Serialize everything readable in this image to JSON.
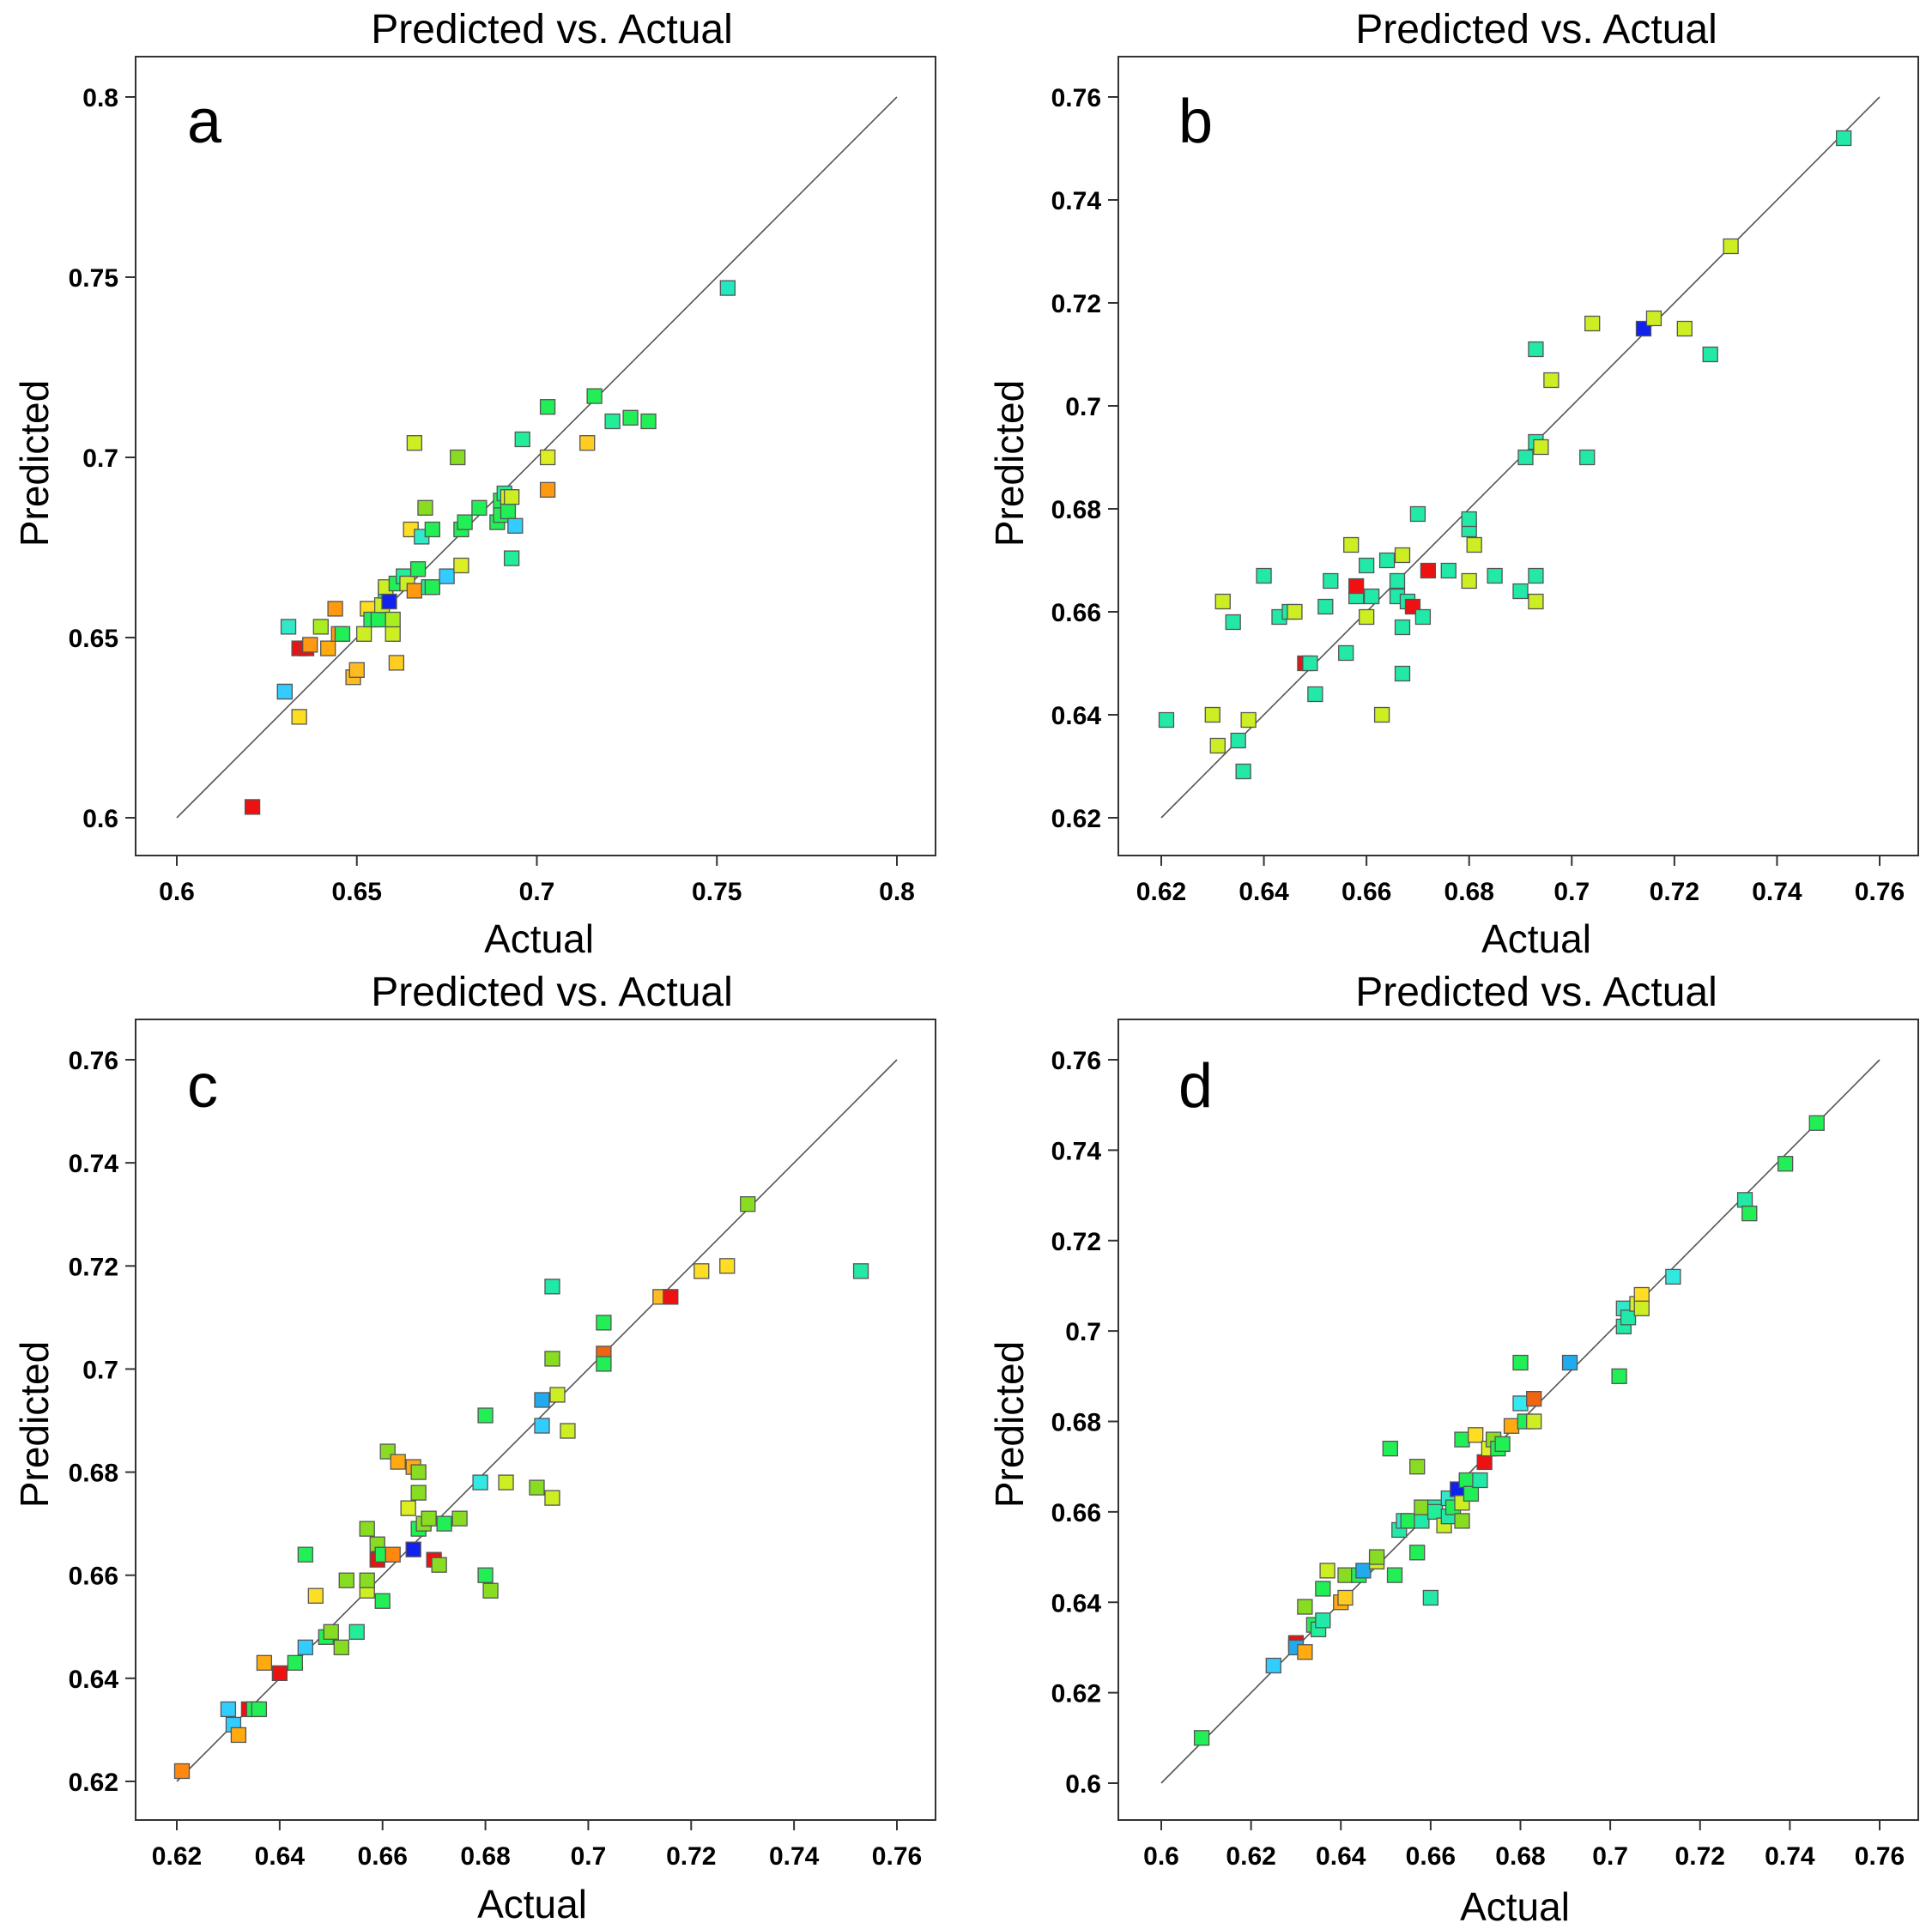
{
  "figure": {
    "title_common": "Predicted vs. Actual"
  },
  "chart_data": [
    {
      "type": "scatter",
      "panel": "a",
      "title": "Predicted vs. Actual",
      "xlabel": "Actual",
      "ylabel": "Predicted",
      "xlim": [
        0.6,
        0.8
      ],
      "ylim": [
        0.6,
        0.8
      ],
      "xticks": [
        "0.6",
        "0.65",
        "0.7",
        "0.75",
        "0.8"
      ],
      "yticks": [
        "0.6",
        "0.65",
        "0.7",
        "0.75",
        "0.8"
      ],
      "x": [
        0.621,
        0.63,
        0.631,
        0.63,
        0.634,
        0.634,
        0.636,
        0.637,
        0.64,
        0.642,
        0.644,
        0.645,
        0.646,
        0.649,
        0.65,
        0.652,
        0.653,
        0.654,
        0.656,
        0.657,
        0.658,
        0.658,
        0.659,
        0.66,
        0.66,
        0.661,
        0.661,
        0.663,
        0.664,
        0.665,
        0.666,
        0.666,
        0.667,
        0.668,
        0.669,
        0.67,
        0.671,
        0.671,
        0.675,
        0.678,
        0.679,
        0.679,
        0.68,
        0.684,
        0.689,
        0.69,
        0.69,
        0.691,
        0.692,
        0.692,
        0.693,
        0.693,
        0.694,
        0.696,
        0.703,
        0.703,
        0.703,
        0.714,
        0.716,
        0.721,
        0.726,
        0.731,
        0.753
      ],
      "y": [
        0.603,
        0.635,
        0.653,
        0.635,
        0.647,
        0.628,
        0.647,
        0.648,
        0.653,
        0.647,
        0.658,
        0.651,
        0.651,
        0.639,
        0.641,
        0.651,
        0.658,
        0.655,
        0.655,
        0.659,
        0.663,
        0.664,
        0.66,
        0.651,
        0.655,
        0.643,
        0.665,
        0.667,
        0.665,
        0.68,
        0.704,
        0.663,
        0.669,
        0.678,
        0.686,
        0.664,
        0.68,
        0.664,
        0.667,
        0.7,
        0.68,
        0.67,
        0.682,
        0.686,
        0.682,
        0.684,
        0.688,
        0.69,
        0.689,
        0.685,
        0.672,
        0.689,
        0.681,
        0.705,
        0.714,
        0.7,
        0.691,
        0.704,
        0.717,
        0.71,
        0.711,
        0.71,
        0.747
      ],
      "colors": [
        "#ee1111",
        "#88dd22",
        "#33e8c8",
        "#33ccff",
        "#ee1111",
        "#ffdd22",
        "#ee1111",
        "#ff9911",
        "#aaee22",
        "#ffaa11",
        "#ff9911",
        "#ff9911",
        "#22ee55",
        "#ffbb22",
        "#ffbb22",
        "#ccee22",
        "#ffdd22",
        "#22ee55",
        "#22ee55",
        "#ccee22",
        "#22ee99",
        "#ccee22",
        "#1122ee",
        "#ccee22",
        "#aaee22",
        "#ffcc22",
        "#22ee55",
        "#22ee99",
        "#ccee22",
        "#ffdd22",
        "#ccee22",
        "#ff9911",
        "#22ee55",
        "#33e8c8",
        "#88dd22",
        "#22ee99",
        "#22ee55",
        "#22ee55",
        "#33ccff",
        "#88dd22",
        "#22ee55",
        "#ddee22",
        "#22ee55",
        "#22ee55",
        "#22ee55",
        "#22ee55",
        "#22ee55",
        "#22ee99",
        "#ddee22",
        "#22ee55",
        "#22ee99",
        "#ccee22",
        "#33ccff",
        "#22ee99",
        "#22ee55",
        "#ddee22",
        "#ff9911",
        "#ffcc22",
        "#22ee55",
        "#22ee99",
        "#22ee55",
        "#22ee55",
        "#22e8c0"
      ]
    },
    {
      "type": "scatter",
      "panel": "b",
      "title": "Predicted vs. Actual",
      "xlabel": "Actual",
      "ylabel": "Predicted",
      "xlim": [
        0.62,
        0.76
      ],
      "ylim": [
        0.62,
        0.76
      ],
      "xticks": [
        "0.62",
        "0.64",
        "0.66",
        "0.68",
        "0.7",
        "0.72",
        "0.74",
        "0.76"
      ],
      "yticks": [
        "0.62",
        "0.64",
        "0.66",
        "0.68",
        "0.7",
        "0.72",
        "0.74",
        "0.76"
      ],
      "x": [
        0.621,
        0.63,
        0.631,
        0.632,
        0.634,
        0.635,
        0.636,
        0.637,
        0.64,
        0.643,
        0.645,
        0.646,
        0.648,
        0.649,
        0.65,
        0.652,
        0.653,
        0.656,
        0.657,
        0.658,
        0.658,
        0.66,
        0.66,
        0.661,
        0.663,
        0.664,
        0.666,
        0.666,
        0.667,
        0.667,
        0.667,
        0.668,
        0.669,
        0.67,
        0.671,
        0.672,
        0.676,
        0.68,
        0.68,
        0.68,
        0.681,
        0.685,
        0.69,
        0.691,
        0.693,
        0.693,
        0.693,
        0.693,
        0.694,
        0.696,
        0.703,
        0.704,
        0.714,
        0.716,
        0.722,
        0.727,
        0.731,
        0.753
      ],
      "y": [
        0.639,
        0.64,
        0.634,
        0.662,
        0.658,
        0.635,
        0.629,
        0.639,
        0.667,
        0.659,
        0.66,
        0.66,
        0.65,
        0.65,
        0.644,
        0.661,
        0.666,
        0.652,
        0.673,
        0.663,
        0.665,
        0.659,
        0.669,
        0.663,
        0.64,
        0.67,
        0.666,
        0.663,
        0.671,
        0.657,
        0.648,
        0.662,
        0.661,
        0.679,
        0.659,
        0.668,
        0.668,
        0.676,
        0.678,
        0.666,
        0.673,
        0.667,
        0.664,
        0.69,
        0.711,
        0.693,
        0.667,
        0.662,
        0.692,
        0.705,
        0.69,
        0.716,
        0.715,
        0.717,
        0.715,
        0.71,
        0.731,
        0.752
      ],
      "colors": [
        "#22e8a8",
        "#ccee22",
        "#ccee22",
        "#ccee22",
        "#22e8a8",
        "#22e8a8",
        "#22e8a8",
        "#ccee22",
        "#22e8a8",
        "#22e8a8",
        "#22e8a8",
        "#ccee22",
        "#ee1111",
        "#22e8a8",
        "#22e8a8",
        "#22e8a8",
        "#22e8a8",
        "#22e8a8",
        "#ccee22",
        "#22e8a8",
        "#ee1111",
        "#ccee22",
        "#22e8a8",
        "#22e8a8",
        "#ccee22",
        "#22e8a8",
        "#22e8a8",
        "#22e8a8",
        "#ccee22",
        "#22e8a8",
        "#22e8a8",
        "#22e8a8",
        "#ee1111",
        "#22e8a8",
        "#22e8a8",
        "#ee1111",
        "#22e8a8",
        "#22e8a8",
        "#22e8a8",
        "#ccee22",
        "#ccee22",
        "#22e8a8",
        "#22e8a8",
        "#22e8a8",
        "#22e8a8",
        "#22e8a8",
        "#22e8a8",
        "#ccee22",
        "#ccee22",
        "#ccee22",
        "#22e8a8",
        "#ccee22",
        "#1122ee",
        "#ccee22",
        "#ccee22",
        "#22e8a8",
        "#ccee22",
        "#22e8a8"
      ]
    },
    {
      "type": "scatter",
      "panel": "c",
      "title": "Predicted vs. Actual",
      "xlabel": "Actual",
      "ylabel": "Predicted",
      "xlim": [
        0.62,
        0.76
      ],
      "ylim": [
        0.62,
        0.76
      ],
      "xticks": [
        "0.62",
        "0.64",
        "0.66",
        "0.68",
        "0.7",
        "0.72",
        "0.74",
        "0.76"
      ],
      "yticks": [
        "0.62",
        "0.64",
        "0.66",
        "0.68",
        "0.7",
        "0.72",
        "0.74",
        "0.76"
      ],
      "x": [
        0.621,
        0.63,
        0.631,
        0.632,
        0.634,
        0.635,
        0.636,
        0.637,
        0.64,
        0.643,
        0.645,
        0.645,
        0.647,
        0.649,
        0.65,
        0.652,
        0.653,
        0.655,
        0.657,
        0.657,
        0.657,
        0.659,
        0.659,
        0.66,
        0.66,
        0.661,
        0.662,
        0.663,
        0.665,
        0.666,
        0.666,
        0.667,
        0.667,
        0.667,
        0.668,
        0.669,
        0.67,
        0.671,
        0.672,
        0.675,
        0.679,
        0.68,
        0.68,
        0.681,
        0.684,
        0.69,
        0.691,
        0.691,
        0.693,
        0.693,
        0.693,
        0.694,
        0.696,
        0.703,
        0.703,
        0.703,
        0.714,
        0.716,
        0.722,
        0.727,
        0.731,
        0.753
      ],
      "y": [
        0.622,
        0.634,
        0.631,
        0.629,
        0.634,
        0.634,
        0.634,
        0.643,
        0.641,
        0.643,
        0.646,
        0.664,
        0.656,
        0.648,
        0.649,
        0.646,
        0.659,
        0.649,
        0.669,
        0.657,
        0.659,
        0.666,
        0.663,
        0.655,
        0.664,
        0.684,
        0.664,
        0.682,
        0.673,
        0.681,
        0.665,
        0.669,
        0.68,
        0.676,
        0.67,
        0.671,
        0.663,
        0.662,
        0.67,
        0.671,
        0.678,
        0.66,
        0.691,
        0.657,
        0.678,
        0.677,
        0.694,
        0.689,
        0.716,
        0.702,
        0.675,
        0.695,
        0.688,
        0.703,
        0.709,
        0.701,
        0.714,
        0.714,
        0.719,
        0.72,
        0.732,
        0.719
      ],
      "colors": [
        "#ff8811",
        "#33ccff",
        "#33ccff",
        "#ffaa11",
        "#ee1111",
        "#22ee55",
        "#22ee55",
        "#ffaa11",
        "#ee1111",
        "#22ee55",
        "#33ccff",
        "#22ee55",
        "#ffdd22",
        "#22ee55",
        "#88dd22",
        "#88dd22",
        "#88dd22",
        "#22ee99",
        "#88dd22",
        "#ccee22",
        "#88dd22",
        "#88dd22",
        "#ee1111",
        "#22ee55",
        "#22ee55",
        "#88dd22",
        "#ff8811",
        "#ffaa11",
        "#ddee22",
        "#ffaa11",
        "#1122ee",
        "#22ee55",
        "#88dd22",
        "#88dd22",
        "#88dd22",
        "#88dd22",
        "#ee1111",
        "#88dd22",
        "#22ee55",
        "#88dd22",
        "#33e8e0",
        "#22ee55",
        "#22ee55",
        "#88dd22",
        "#ccee22",
        "#88dd22",
        "#22aaee",
        "#33ccff",
        "#22e8a8",
        "#88dd22",
        "#ccee22",
        "#ccee22",
        "#ccee22",
        "#ee6611",
        "#22ee55",
        "#22ee55",
        "#ffbb22",
        "#ee1111",
        "#ffdd22",
        "#ffdd22",
        "#88dd22",
        "#22e8a8"
      ]
    },
    {
      "type": "scatter",
      "panel": "d",
      "title": "Predicted vs. Actual",
      "xlabel": "Actual",
      "ylabel": "Predicted",
      "xlim": [
        0.6,
        0.76
      ],
      "ylim": [
        0.6,
        0.76
      ],
      "xticks": [
        "0.6",
        "0.62",
        "0.64",
        "0.66",
        "0.68",
        "0.7",
        "0.72",
        "0.74",
        "0.76"
      ],
      "yticks": [
        "0.6",
        "0.62",
        "0.64",
        "0.66",
        "0.68",
        "0.7",
        "0.72",
        "0.74",
        "0.76"
      ],
      "x": [
        0.609,
        0.625,
        0.63,
        0.63,
        0.632,
        0.632,
        0.634,
        0.635,
        0.636,
        0.636,
        0.637,
        0.64,
        0.641,
        0.641,
        0.644,
        0.645,
        0.648,
        0.648,
        0.651,
        0.652,
        0.653,
        0.654,
        0.655,
        0.657,
        0.657,
        0.658,
        0.658,
        0.66,
        0.661,
        0.661,
        0.663,
        0.664,
        0.664,
        0.665,
        0.666,
        0.667,
        0.667,
        0.667,
        0.668,
        0.669,
        0.67,
        0.671,
        0.672,
        0.673,
        0.674,
        0.675,
        0.676,
        0.678,
        0.68,
        0.68,
        0.681,
        0.683,
        0.683,
        0.691,
        0.702,
        0.703,
        0.703,
        0.704,
        0.706,
        0.707,
        0.707,
        0.714,
        0.73,
        0.731,
        0.739,
        0.746
      ],
      "y": [
        0.61,
        0.626,
        0.631,
        0.63,
        0.629,
        0.639,
        0.635,
        0.634,
        0.643,
        0.636,
        0.647,
        0.64,
        0.641,
        0.646,
        0.646,
        0.647,
        0.649,
        0.65,
        0.674,
        0.646,
        0.656,
        0.658,
        0.658,
        0.651,
        0.67,
        0.658,
        0.661,
        0.641,
        0.661,
        0.66,
        0.657,
        0.659,
        0.663,
        0.661,
        0.665,
        0.676,
        0.662,
        0.658,
        0.667,
        0.664,
        0.677,
        0.667,
        0.671,
        0.674,
        0.676,
        0.674,
        0.675,
        0.679,
        0.693,
        0.684,
        0.68,
        0.685,
        0.68,
        0.693,
        0.69,
        0.705,
        0.701,
        0.703,
        0.706,
        0.708,
        0.705,
        0.712,
        0.729,
        0.726,
        0.737,
        0.746
      ],
      "colors": [
        "#22ee55",
        "#33ccff",
        "#ee1111",
        "#22aaee",
        "#ffaa11",
        "#88dd22",
        "#22ee55",
        "#22ee99",
        "#22ee55",
        "#22e8a8",
        "#ccee22",
        "#ffaa11",
        "#ffcc22",
        "#88dd22",
        "#22ee55",
        "#22aaee",
        "#ccee22",
        "#88dd22",
        "#22ee55",
        "#22ee55",
        "#22e8a8",
        "#33e8c8",
        "#22ee55",
        "#22ee55",
        "#88dd22",
        "#22e8a8",
        "#88dd22",
        "#22e8a8",
        "#22e8a8",
        "#22ee99",
        "#ccee22",
        "#22e8a8",
        "#33e8c8",
        "#22ee55",
        "#1122ee",
        "#22ee55",
        "#ccee22",
        "#88dd22",
        "#22ee55",
        "#22ee55",
        "#ffdd22",
        "#22e8a8",
        "#ee1111",
        "#ddee22",
        "#88dd22",
        "#22ee55",
        "#22ee55",
        "#ffaa11",
        "#22ee55",
        "#33e8f0",
        "#22ee55",
        "#ee6611",
        "#ccee22",
        "#22aaee",
        "#22ee55",
        "#33e8c8",
        "#22e8a8",
        "#22e8a8",
        "#ddee22",
        "#ffdd22",
        "#ccee22",
        "#33e8e0",
        "#22e8a8",
        "#22ee55",
        "#22ee55",
        "#22ee55"
      ]
    }
  ]
}
